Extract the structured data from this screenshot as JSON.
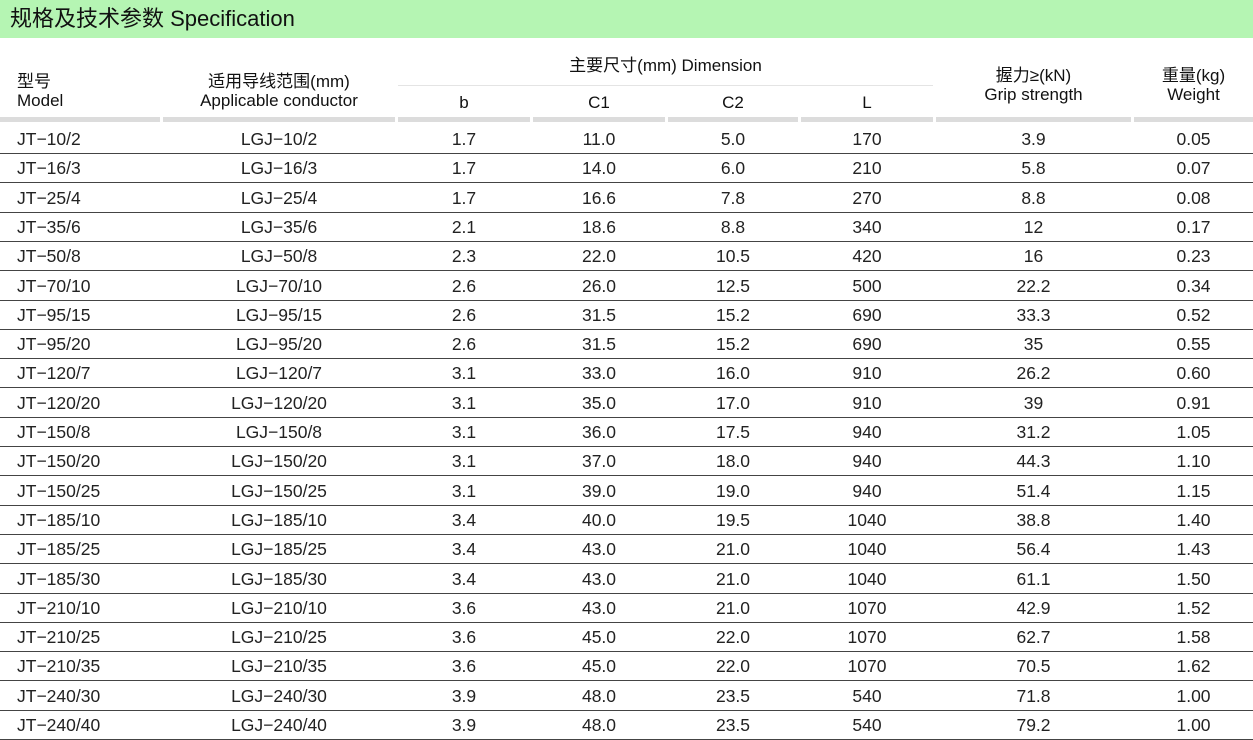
{
  "banner": {
    "title": "规格及技术参数  Specification"
  },
  "headers": {
    "model_cn": "型号",
    "model_en": "Model",
    "conductor_cn": "适用导线范围(mm)",
    "conductor_en": "Applicable conductor",
    "dimension": "主要尺寸(mm)  Dimension",
    "b": "b",
    "c1": "C1",
    "c2": "C2",
    "l": "L",
    "grip_cn": "握力≥(kN)",
    "grip_en": "Grip strength",
    "weight_cn": "重量(kg)",
    "weight_en": "Weight"
  },
  "rows": [
    [
      "JT−10/2",
      "LGJ−10/2",
      "1.7",
      "11.0",
      "5.0",
      "170",
      "3.9",
      "0.05"
    ],
    [
      "JT−16/3",
      "LGJ−16/3",
      "1.7",
      "14.0",
      "6.0",
      "210",
      "5.8",
      "0.07"
    ],
    [
      "JT−25/4",
      "LGJ−25/4",
      "1.7",
      "16.6",
      "7.8",
      "270",
      "8.8",
      "0.08"
    ],
    [
      "JT−35/6",
      "LGJ−35/6",
      "2.1",
      "18.6",
      "8.8",
      "340",
      "12",
      "0.17"
    ],
    [
      "JT−50/8",
      "LGJ−50/8",
      "2.3",
      "22.0",
      "10.5",
      "420",
      "16",
      "0.23"
    ],
    [
      "JT−70/10",
      "LGJ−70/10",
      "2.6",
      "26.0",
      "12.5",
      "500",
      "22.2",
      "0.34"
    ],
    [
      "JT−95/15",
      "LGJ−95/15",
      "2.6",
      "31.5",
      "15.2",
      "690",
      "33.3",
      "0.52"
    ],
    [
      "JT−95/20",
      "LGJ−95/20",
      "2.6",
      "31.5",
      "15.2",
      "690",
      "35",
      "0.55"
    ],
    [
      "JT−120/7",
      "LGJ−120/7",
      "3.1",
      "33.0",
      "16.0",
      "910",
      "26.2",
      "0.60"
    ],
    [
      "JT−120/20",
      "LGJ−120/20",
      "3.1",
      "35.0",
      "17.0",
      "910",
      "39",
      "0.91"
    ],
    [
      "JT−150/8",
      "LGJ−150/8",
      "3.1",
      "36.0",
      "17.5",
      "940",
      "31.2",
      "1.05"
    ],
    [
      "JT−150/20",
      "LGJ−150/20",
      "3.1",
      "37.0",
      "18.0",
      "940",
      "44.3",
      "1.10"
    ],
    [
      "JT−150/25",
      "LGJ−150/25",
      "3.1",
      "39.0",
      "19.0",
      "940",
      "51.4",
      "1.15"
    ],
    [
      "JT−185/10",
      "LGJ−185/10",
      "3.4",
      "40.0",
      "19.5",
      "1040",
      "38.8",
      "1.40"
    ],
    [
      "JT−185/25",
      "LGJ−185/25",
      "3.4",
      "43.0",
      "21.0",
      "1040",
      "56.4",
      "1.43"
    ],
    [
      "JT−185/30",
      "LGJ−185/30",
      "3.4",
      "43.0",
      "21.0",
      "1040",
      "61.1",
      "1.50"
    ],
    [
      "JT−210/10",
      "LGJ−210/10",
      "3.6",
      "43.0",
      "21.0",
      "1070",
      "42.9",
      "1.52"
    ],
    [
      "JT−210/25",
      "LGJ−210/25",
      "3.6",
      "45.0",
      "22.0",
      "1070",
      "62.7",
      "1.58"
    ],
    [
      "JT−210/35",
      "LGJ−210/35",
      "3.6",
      "45.0",
      "22.0",
      "1070",
      "70.5",
      "1.62"
    ],
    [
      "JT−240/30",
      "LGJ−240/30",
      "3.9",
      "48.0",
      "23.5",
      "540",
      "71.8",
      "1.00"
    ],
    [
      "JT−240/40",
      "LGJ−240/40",
      "3.9",
      "48.0",
      "23.5",
      "540",
      "79.2",
      "1.00"
    ]
  ]
}
